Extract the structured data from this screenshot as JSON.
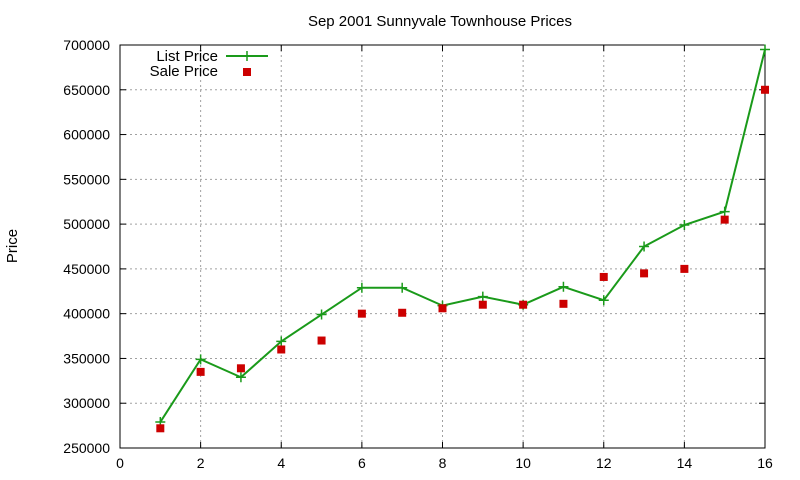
{
  "chart_data": {
    "type": "line",
    "title": "Sep 2001 Sunnyvale Townhouse Prices",
    "xlabel": "",
    "ylabel": "Price",
    "xlim": [
      0,
      16
    ],
    "ylim": [
      250000,
      700000
    ],
    "xticks": [
      0,
      2,
      4,
      6,
      8,
      10,
      12,
      14,
      16
    ],
    "yticks": [
      250000,
      300000,
      350000,
      400000,
      450000,
      500000,
      550000,
      600000,
      650000,
      700000
    ],
    "grid": true,
    "legend_position": "top-left",
    "series": [
      {
        "name": "List Price",
        "style": "line-with-plus-markers",
        "color": "#1a9a1a",
        "x": [
          1,
          2,
          3,
          4,
          5,
          6,
          7,
          8,
          9,
          10,
          11,
          12,
          13,
          14,
          15,
          16
        ],
        "y": [
          279000,
          349000,
          329000,
          369000,
          399000,
          429000,
          429000,
          409000,
          419000,
          410000,
          430000,
          415000,
          475000,
          499000,
          514000,
          695000
        ]
      },
      {
        "name": "Sale Price",
        "style": "square-markers",
        "color": "#cc0000",
        "x": [
          1,
          2,
          3,
          4,
          5,
          6,
          7,
          8,
          9,
          10,
          11,
          12,
          13,
          14,
          15,
          16
        ],
        "y": [
          272000,
          335000,
          339000,
          360000,
          370000,
          400000,
          401000,
          406000,
          410000,
          410000,
          411000,
          441000,
          445000,
          450000,
          505000,
          650000
        ]
      }
    ]
  }
}
